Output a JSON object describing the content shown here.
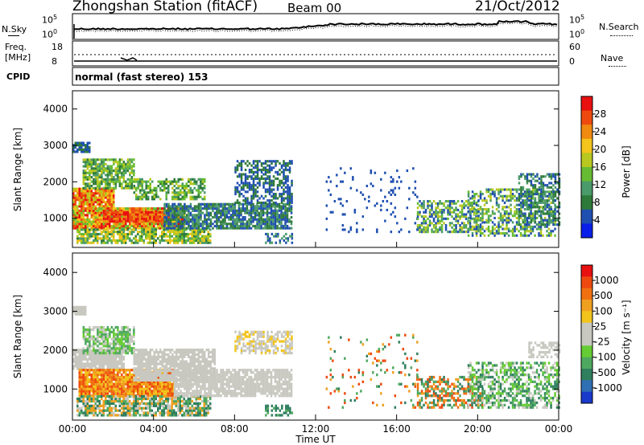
{
  "header": {
    "station": "Zhongshan Station (fitACF)",
    "beam": "Beam 00",
    "date": "21/Oct/2012"
  },
  "noise_panel": {
    "left_label": "N.Sky",
    "right_label": "N.Search",
    "left_ticks": [
      {
        "base": "10",
        "exp": "5"
      },
      {
        "base": "10",
        "exp": "0"
      }
    ],
    "right_ticks": [
      {
        "base": "10",
        "exp": "5"
      },
      {
        "base": "10",
        "exp": "0"
      }
    ]
  },
  "freq_panel": {
    "left_label": "Freq.",
    "left_unit": "[MHz]",
    "right_label": "Nave",
    "left_ticks": [
      "18",
      "8"
    ],
    "right_ticks": [
      "60",
      "0"
    ]
  },
  "cpid": {
    "label": "CPID",
    "mode": "normal (fast stereo) 153"
  },
  "x_axis": {
    "label": "Time UT",
    "ticks": [
      "00:00",
      "04:00",
      "08:00",
      "12:00",
      "16:00",
      "20:00",
      "00:00"
    ]
  },
  "chart_data": [
    {
      "type": "heatmap",
      "quantity": "Power",
      "ylabel": "Slant Range [km]",
      "yticks": [
        "4000",
        "3000",
        "2000",
        "1000"
      ],
      "ylim": [
        200,
        4500
      ],
      "xlim_hours": [
        0,
        24
      ],
      "colorbar": {
        "label": "Power [dB]",
        "ticks": [
          "28",
          "24",
          "20",
          "16",
          "12",
          "8",
          "4"
        ],
        "colors": [
          "#0a1fe8",
          "#1f4fb0",
          "#2e7a3a",
          "#4a9a6a",
          "#66bb33",
          "#b8c820",
          "#f2c41c",
          "#f08a10",
          "#ee4a10",
          "#e81010"
        ]
      }
    },
    {
      "type": "heatmap",
      "quantity": "Velocity",
      "ylabel": "Slant Range [km]",
      "yticks": [
        "4000",
        "3000",
        "2000",
        "1000"
      ],
      "ylim": [
        200,
        4500
      ],
      "xlim_hours": [
        0,
        24
      ],
      "colorbar": {
        "label": "Velocity [m s⁻¹]",
        "ticks": [
          "1000",
          "500",
          "100",
          "25",
          "-25",
          "-100",
          "-500",
          "-1000"
        ],
        "colors": [
          "#1a3acc",
          "#2f6fb3",
          "#2f7f5f",
          "#4fa85f",
          "#66cc33",
          "#c8c8c0",
          "#c8c8c0",
          "#f2c41c",
          "#f0a020",
          "#f07010",
          "#ee4a10",
          "#e81010"
        ]
      }
    }
  ]
}
